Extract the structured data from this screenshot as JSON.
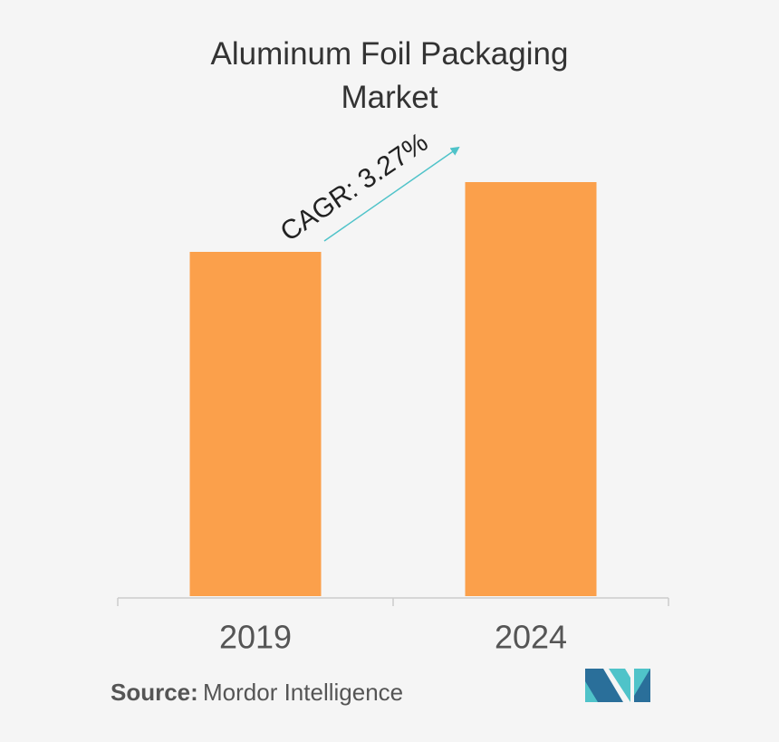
{
  "chart_data": {
    "type": "bar",
    "title": "Aluminum Foil Packaging Market",
    "categories": [
      "2019",
      "2024"
    ],
    "values": [
      38,
      45.7
    ],
    "color": "#fba04b",
    "ylim": [
      0,
      50
    ],
    "annotation": "CAGR: 3.27%",
    "source_label": "Source:",
    "source": "Mordor Intelligence"
  }
}
